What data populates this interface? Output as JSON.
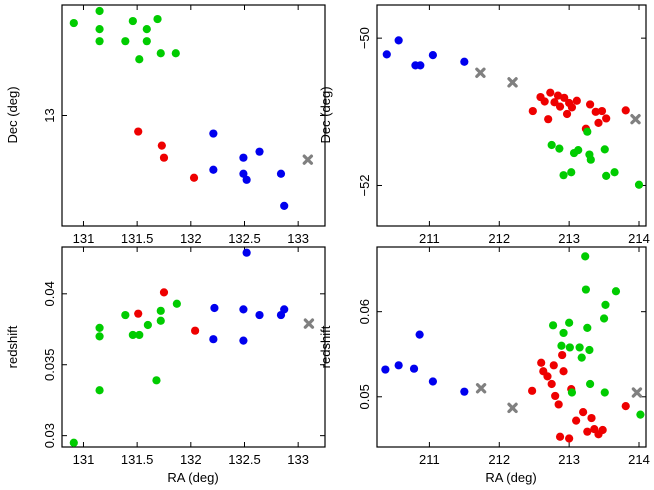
{
  "colors": {
    "green": "#00cc00",
    "blue": "#0000ee",
    "red": "#ee0000",
    "grey": "#808080"
  },
  "chart_data": [
    {
      "type": "scatter",
      "panel": "top-left",
      "xlabel": "",
      "ylabel": "Dec (deg)",
      "xlim": [
        130.8,
        133.25
      ],
      "ylim": [
        12.45,
        13.55
      ],
      "xticks": [
        "131",
        "131.5",
        "132",
        "132.5",
        "133"
      ],
      "yticks": [
        "13"
      ],
      "xtick_labels_shown": true,
      "series": [
        {
          "name": "green",
          "color_key": "green",
          "marker": "circle",
          "points": [
            [
              130.91,
              13.46
            ],
            [
              131.15,
              13.52
            ],
            [
              131.15,
              13.43
            ],
            [
              131.15,
              13.37
            ],
            [
              131.39,
              13.37
            ],
            [
              131.46,
              13.47
            ],
            [
              131.52,
              13.28
            ],
            [
              131.59,
              13.43
            ],
            [
              131.59,
              13.37
            ],
            [
              131.69,
              13.48
            ],
            [
              131.72,
              13.31
            ],
            [
              131.86,
              13.31
            ]
          ]
        },
        {
          "name": "red",
          "color_key": "red",
          "marker": "circle",
          "points": [
            [
              131.51,
              12.92
            ],
            [
              131.73,
              12.85
            ],
            [
              131.75,
              12.79
            ],
            [
              132.03,
              12.69
            ]
          ]
        },
        {
          "name": "blue",
          "color_key": "blue",
          "marker": "circle",
          "points": [
            [
              132.21,
              12.91
            ],
            [
              132.21,
              12.73
            ],
            [
              132.49,
              12.79
            ],
            [
              132.49,
              12.71
            ],
            [
              132.52,
              12.68
            ],
            [
              132.64,
              12.82
            ],
            [
              132.84,
              12.71
            ],
            [
              132.87,
              12.55
            ]
          ]
        },
        {
          "name": "center",
          "color_key": "grey",
          "marker": "cross",
          "points": [
            [
              133.09,
              12.78
            ]
          ]
        }
      ]
    },
    {
      "type": "scatter",
      "panel": "top-right",
      "xlabel": "",
      "ylabel": "Dec (deg)",
      "xlim": [
        210.25,
        214.1
      ],
      "ylim": [
        -52.55,
        -49.55
      ],
      "xticks": [
        "211",
        "212",
        "213",
        "214"
      ],
      "yticks": [
        "−50",
        "−52"
      ],
      "xtick_labels_shown": true,
      "series": [
        {
          "name": "blue",
          "color_key": "blue",
          "marker": "circle",
          "points": [
            [
              210.39,
              -50.22
            ],
            [
              210.56,
              -50.03
            ],
            [
              210.8,
              -50.37
            ],
            [
              210.87,
              -50.37
            ],
            [
              211.05,
              -50.23
            ],
            [
              211.5,
              -50.32
            ]
          ]
        },
        {
          "name": "red",
          "color_key": "red",
          "marker": "circle",
          "points": [
            [
              212.48,
              -50.99
            ],
            [
              212.59,
              -50.8
            ],
            [
              212.65,
              -50.86
            ],
            [
              212.7,
              -51.1
            ],
            [
              212.73,
              -50.74
            ],
            [
              212.79,
              -50.87
            ],
            [
              212.84,
              -50.78
            ],
            [
              212.87,
              -50.93
            ],
            [
              212.93,
              -50.81
            ],
            [
              212.97,
              -51.03
            ],
            [
              213.0,
              -50.88
            ],
            [
              213.04,
              -50.94
            ],
            [
              213.11,
              -50.85
            ],
            [
              213.24,
              -51.23
            ],
            [
              213.3,
              -50.9
            ],
            [
              213.38,
              -51.0
            ],
            [
              213.42,
              -51.15
            ],
            [
              213.47,
              -50.99
            ],
            [
              213.53,
              -51.09
            ],
            [
              213.81,
              -50.98
            ]
          ]
        },
        {
          "name": "green",
          "color_key": "green",
          "marker": "circle",
          "points": [
            [
              212.75,
              -51.45
            ],
            [
              212.86,
              -51.5
            ],
            [
              212.92,
              -51.86
            ],
            [
              213.03,
              -51.82
            ],
            [
              213.07,
              -51.56
            ],
            [
              213.13,
              -51.52
            ],
            [
              213.26,
              -51.27
            ],
            [
              213.29,
              -51.58
            ],
            [
              213.31,
              -51.65
            ],
            [
              213.51,
              -51.51
            ],
            [
              213.53,
              -51.87
            ],
            [
              213.65,
              -51.82
            ],
            [
              214.0,
              -51.99
            ]
          ]
        },
        {
          "name": "center",
          "color_key": "grey",
          "marker": "cross",
          "points": [
            [
              211.73,
              -50.47
            ],
            [
              212.19,
              -50.6
            ],
            [
              213.95,
              -51.1
            ]
          ]
        }
      ]
    },
    {
      "type": "scatter",
      "panel": "bottom-left",
      "xlabel": "RA (deg)",
      "ylabel": "redshift",
      "xlim": [
        130.8,
        133.25
      ],
      "ylim": [
        0.0292,
        0.0433
      ],
      "xticks": [
        "131",
        "131.5",
        "132",
        "132.5",
        "133"
      ],
      "yticks": [
        "0.03",
        "0.035",
        "0.04"
      ],
      "xtick_labels_shown": true,
      "series": [
        {
          "name": "green",
          "color_key": "green",
          "marker": "circle",
          "points": [
            [
              130.91,
              0.0295
            ],
            [
              131.15,
              0.0332
            ],
            [
              131.15,
              0.037
            ],
            [
              131.15,
              0.0376
            ],
            [
              131.39,
              0.0385
            ],
            [
              131.46,
              0.0371
            ],
            [
              131.52,
              0.0371
            ],
            [
              131.6,
              0.0378
            ],
            [
              131.68,
              0.0339
            ],
            [
              131.72,
              0.0381
            ],
            [
              131.72,
              0.0388
            ],
            [
              131.87,
              0.0393
            ]
          ]
        },
        {
          "name": "red",
          "color_key": "red",
          "marker": "circle",
          "points": [
            [
              131.51,
              0.0386
            ],
            [
              131.75,
              0.0401
            ],
            [
              132.04,
              0.0374
            ]
          ]
        },
        {
          "name": "blue",
          "color_key": "blue",
          "marker": "circle",
          "points": [
            [
              132.21,
              0.0368
            ],
            [
              132.22,
              0.039
            ],
            [
              132.49,
              0.0389
            ],
            [
              132.49,
              0.0367
            ],
            [
              132.52,
              0.0429
            ],
            [
              132.64,
              0.0385
            ],
            [
              132.84,
              0.0385
            ],
            [
              132.87,
              0.0389
            ]
          ]
        },
        {
          "name": "center",
          "color_key": "grey",
          "marker": "cross",
          "points": [
            [
              133.1,
              0.0379
            ]
          ]
        }
      ]
    },
    {
      "type": "scatter",
      "panel": "bottom-right",
      "xlabel": "RA (deg)",
      "ylabel": "redshift",
      "xlim": [
        210.25,
        214.1
      ],
      "ylim": [
        0.0441,
        0.0676
      ],
      "xticks": [
        "211",
        "212",
        "213",
        "214"
      ],
      "yticks": [
        "0.05",
        "0.06"
      ],
      "xtick_labels_shown": true,
      "series": [
        {
          "name": "blue",
          "color_key": "blue",
          "marker": "circle",
          "points": [
            [
              210.37,
              0.0532
            ],
            [
              210.56,
              0.0537
            ],
            [
              210.78,
              0.0533
            ],
            [
              210.86,
              0.0573
            ],
            [
              211.05,
              0.0518
            ],
            [
              211.5,
              0.0506
            ]
          ]
        },
        {
          "name": "red",
          "color_key": "red",
          "marker": "circle",
          "points": [
            [
              212.47,
              0.0507
            ],
            [
              212.6,
              0.054
            ],
            [
              212.63,
              0.053
            ],
            [
              212.69,
              0.0524
            ],
            [
              212.75,
              0.0515
            ],
            [
              212.78,
              0.0537
            ],
            [
              212.8,
              0.0501
            ],
            [
              212.85,
              0.0491
            ],
            [
              212.9,
              0.0549
            ],
            [
              212.92,
              0.053
            ],
            [
              212.87,
              0.0453
            ],
            [
              213.0,
              0.0451
            ],
            [
              213.03,
              0.0509
            ],
            [
              213.1,
              0.0472
            ],
            [
              213.2,
              0.0482
            ],
            [
              213.26,
              0.0459
            ],
            [
              213.32,
              0.0475
            ],
            [
              213.36,
              0.0462
            ],
            [
              213.42,
              0.0456
            ],
            [
              213.48,
              0.0461
            ],
            [
              213.81,
              0.0489
            ]
          ]
        },
        {
          "name": "green",
          "color_key": "green",
          "marker": "circle",
          "points": [
            [
              212.77,
              0.0584
            ],
            [
              212.89,
              0.056
            ],
            [
              212.92,
              0.0575
            ],
            [
              213.0,
              0.0587
            ],
            [
              213.01,
              0.0558
            ],
            [
              213.04,
              0.0505
            ],
            [
              213.15,
              0.0558
            ],
            [
              213.18,
              0.0546
            ],
            [
              213.23,
              0.0665
            ],
            [
              213.24,
              0.0626
            ],
            [
              213.26,
              0.0581
            ],
            [
              213.29,
              0.0555
            ],
            [
              213.3,
              0.0515
            ],
            [
              213.5,
              0.0592
            ],
            [
              213.51,
              0.0505
            ],
            [
              213.52,
              0.0608
            ],
            [
              213.67,
              0.0624
            ],
            [
              214.02,
              0.0479
            ]
          ]
        },
        {
          "name": "center",
          "color_key": "grey",
          "marker": "cross",
          "points": [
            [
              211.74,
              0.051
            ],
            [
              212.19,
              0.0487
            ],
            [
              213.97,
              0.0505
            ]
          ]
        }
      ]
    }
  ]
}
